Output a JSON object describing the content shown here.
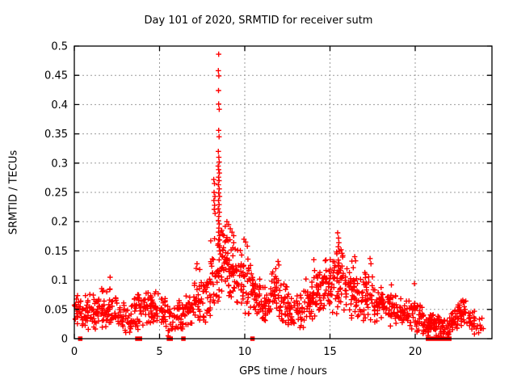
{
  "figure": {
    "title": "Day 101 of 2020, SRMTID for receiver sutm",
    "xlabel": "GPS time / hours",
    "ylabel": "SRMTID / TECUs",
    "background_color": "#ffffff",
    "border_color": "#000000",
    "grid_color": "#9b9b9b",
    "point_color": "#ff0000"
  },
  "chart_data": {
    "type": "scatter",
    "title": "Day 101 of 2020, SRMTID for receiver sutm",
    "xlabel": "GPS time / hours",
    "ylabel": "SRMTID / TECUs",
    "xlim": [
      0,
      24.5
    ],
    "ylim": [
      0,
      0.5
    ],
    "grid": "dashed-major",
    "legend": "none",
    "xticks": {
      "values": [
        0,
        5,
        10,
        15,
        20
      ],
      "labels": [
        "0",
        "5",
        "10",
        "15",
        "20"
      ]
    },
    "yticks": {
      "values": [
        0,
        0.05,
        0.1,
        0.15,
        0.2,
        0.25,
        0.3,
        0.35,
        0.4,
        0.45,
        0.5
      ],
      "labels": [
        "0",
        "0.05",
        "0.1",
        "0.15",
        "0.2",
        "0.25",
        "0.3",
        "0.35",
        "0.4",
        "0.45",
        "0.5"
      ]
    },
    "peak": {
      "x": 8.5,
      "y": 0.49
    },
    "secondary_peak": {
      "x": 15.5,
      "y": 0.18
    },
    "series": [
      {
        "name": "SRMTID",
        "marker": "plus",
        "color": "#ff0000",
        "band_profile": {
          "comment": "per 0.5h bin: [x_start, band_center, band_half_range, point_count] read from plot envelope",
          "bin_width": 0.5,
          "seed": 20101,
          "bins": [
            [
              0.0,
              0.05,
              0.03,
              30
            ],
            [
              0.5,
              0.045,
              0.03,
              28
            ],
            [
              1.0,
              0.05,
              0.032,
              30
            ],
            [
              1.5,
              0.052,
              0.034,
              30
            ],
            [
              2.0,
              0.05,
              0.036,
              28
            ],
            [
              2.5,
              0.038,
              0.026,
              24
            ],
            [
              3.0,
              0.034,
              0.024,
              22
            ],
            [
              3.5,
              0.046,
              0.03,
              28
            ],
            [
              4.0,
              0.055,
              0.032,
              30
            ],
            [
              4.5,
              0.05,
              0.03,
              28
            ],
            [
              5.0,
              0.046,
              0.028,
              26
            ],
            [
              5.5,
              0.038,
              0.032,
              24
            ],
            [
              6.0,
              0.04,
              0.034,
              26
            ],
            [
              6.5,
              0.05,
              0.03,
              26
            ],
            [
              7.0,
              0.07,
              0.045,
              28
            ],
            [
              7.5,
              0.07,
              0.04,
              28
            ],
            [
              8.0,
              0.105,
              0.06,
              32
            ],
            [
              8.5,
              0.125,
              0.06,
              36
            ],
            [
              9.0,
              0.12,
              0.06,
              36
            ],
            [
              9.5,
              0.105,
              0.055,
              32
            ],
            [
              10.0,
              0.09,
              0.05,
              30
            ],
            [
              10.5,
              0.07,
              0.038,
              28
            ],
            [
              11.0,
              0.06,
              0.035,
              28
            ],
            [
              11.5,
              0.082,
              0.045,
              30
            ],
            [
              12.0,
              0.07,
              0.042,
              28
            ],
            [
              12.5,
              0.052,
              0.032,
              26
            ],
            [
              13.0,
              0.052,
              0.034,
              26
            ],
            [
              13.5,
              0.07,
              0.04,
              30
            ],
            [
              14.0,
              0.08,
              0.042,
              32
            ],
            [
              14.5,
              0.092,
              0.048,
              32
            ],
            [
              15.0,
              0.105,
              0.06,
              34
            ],
            [
              15.5,
              0.1,
              0.055,
              32
            ],
            [
              16.0,
              0.085,
              0.05,
              30
            ],
            [
              16.5,
              0.07,
              0.04,
              28
            ],
            [
              17.0,
              0.08,
              0.05,
              28
            ],
            [
              17.5,
              0.06,
              0.032,
              28
            ],
            [
              18.0,
              0.052,
              0.03,
              28
            ],
            [
              18.5,
              0.05,
              0.032,
              26
            ],
            [
              19.0,
              0.045,
              0.026,
              26
            ],
            [
              19.5,
              0.046,
              0.03,
              26
            ],
            [
              20.0,
              0.036,
              0.026,
              26
            ],
            [
              20.5,
              0.026,
              0.026,
              30
            ],
            [
              21.0,
              0.022,
              0.022,
              30
            ],
            [
              21.5,
              0.018,
              0.018,
              26
            ],
            [
              22.0,
              0.03,
              0.026,
              28
            ],
            [
              22.5,
              0.042,
              0.032,
              30
            ],
            [
              23.0,
              0.03,
              0.026,
              24
            ],
            [
              23.5,
              0.02,
              0.016,
              10
            ]
          ]
        },
        "outliers": [
          [
            8.47,
            0.486
          ],
          [
            8.45,
            0.458
          ],
          [
            8.48,
            0.449
          ],
          [
            8.46,
            0.424
          ],
          [
            8.47,
            0.401
          ],
          [
            8.5,
            0.392
          ],
          [
            8.47,
            0.356
          ],
          [
            8.49,
            0.345
          ],
          [
            8.45,
            0.32
          ],
          [
            8.48,
            0.31
          ],
          [
            8.5,
            0.302
          ],
          [
            8.44,
            0.295
          ],
          [
            8.47,
            0.289
          ],
          [
            8.51,
            0.283
          ],
          [
            8.46,
            0.276
          ],
          [
            8.49,
            0.27
          ],
          [
            8.45,
            0.263
          ],
          [
            8.5,
            0.256
          ],
          [
            8.47,
            0.249
          ],
          [
            8.52,
            0.243
          ],
          [
            8.46,
            0.236
          ],
          [
            8.49,
            0.229
          ],
          [
            8.44,
            0.222
          ],
          [
            8.51,
            0.216
          ],
          [
            8.48,
            0.209
          ],
          [
            8.45,
            0.202
          ],
          [
            8.5,
            0.196
          ],
          [
            8.48,
            0.189
          ],
          [
            8.46,
            0.182
          ],
          [
            8.52,
            0.176
          ],
          [
            8.47,
            0.169
          ],
          [
            8.44,
            0.162
          ],
          [
            8.5,
            0.156
          ],
          [
            8.53,
            0.15
          ],
          [
            8.18,
            0.272
          ],
          [
            8.22,
            0.265
          ],
          [
            8.2,
            0.25
          ],
          [
            8.25,
            0.243
          ],
          [
            8.19,
            0.236
          ],
          [
            8.23,
            0.228
          ],
          [
            8.21,
            0.221
          ],
          [
            8.26,
            0.214
          ],
          [
            8.65,
            0.185
          ],
          [
            8.7,
            0.178
          ],
          [
            8.85,
            0.192
          ],
          [
            8.95,
            0.2
          ],
          [
            9.05,
            0.195
          ],
          [
            9.15,
            0.188
          ],
          [
            9.25,
            0.182
          ],
          [
            9.35,
            0.176
          ],
          [
            9.95,
            0.17
          ],
          [
            10.05,
            0.165
          ],
          [
            10.15,
            0.158
          ],
          [
            15.45,
            0.181
          ],
          [
            15.5,
            0.172
          ],
          [
            15.52,
            0.164
          ],
          [
            15.48,
            0.157
          ],
          [
            15.55,
            0.15
          ],
          [
            15.4,
            0.145
          ],
          [
            15.65,
            0.152
          ],
          [
            15.7,
            0.146
          ],
          [
            16.45,
            0.14
          ],
          [
            16.5,
            0.133
          ],
          [
            17.35,
            0.137
          ],
          [
            17.4,
            0.128
          ],
          [
            14.05,
            0.135
          ],
          [
            11.95,
            0.132
          ],
          [
            12.0,
            0.126
          ],
          [
            2.1,
            0.105
          ],
          [
            7.2,
            0.128
          ],
          [
            7.15,
            0.12
          ],
          [
            18.6,
            0.092
          ],
          [
            19.95,
            0.094
          ]
        ]
      },
      {
        "name": "zero-flags",
        "marker": "filled-square",
        "color": "#ff0000",
        "y": 0,
        "x_values": [
          0.35,
          3.7,
          3.85,
          5.55,
          5.65,
          6.4,
          10.45,
          20.75,
          20.9,
          21.0,
          21.1,
          21.25,
          21.4,
          21.55,
          21.7,
          21.85,
          22.0
        ]
      }
    ]
  }
}
